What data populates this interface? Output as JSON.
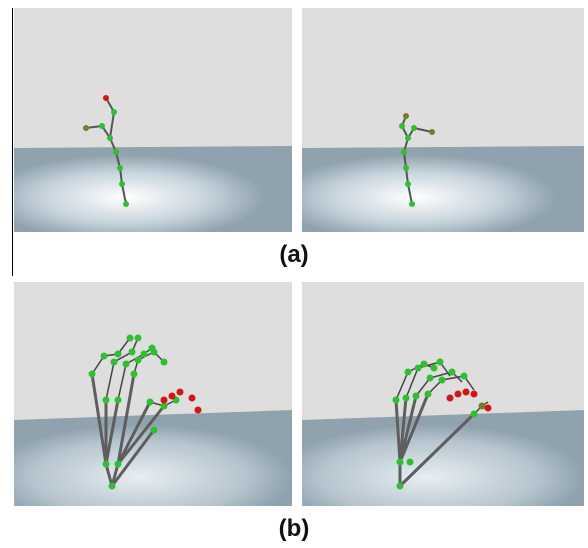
{
  "figure": {
    "label_a": "(a)",
    "label_b": "(b)"
  },
  "colors": {
    "wall": "#dcdcdc",
    "floor": "#9fb0bb",
    "joint_green": "#2fbf2f",
    "joint_red": "#d41414",
    "joint_olive": "#7a7a2a",
    "bone": "#6a6a6a"
  },
  "panels": [
    {
      "name": "panel-a-left",
      "description_icon": "finger-skeleton-render"
    },
    {
      "name": "panel-a-right",
      "description_icon": "finger-skeleton-render"
    },
    {
      "name": "panel-b-left",
      "description_icon": "hand-skeleton-render"
    },
    {
      "name": "panel-b-right",
      "description_icon": "hand-skeleton-render"
    }
  ]
}
